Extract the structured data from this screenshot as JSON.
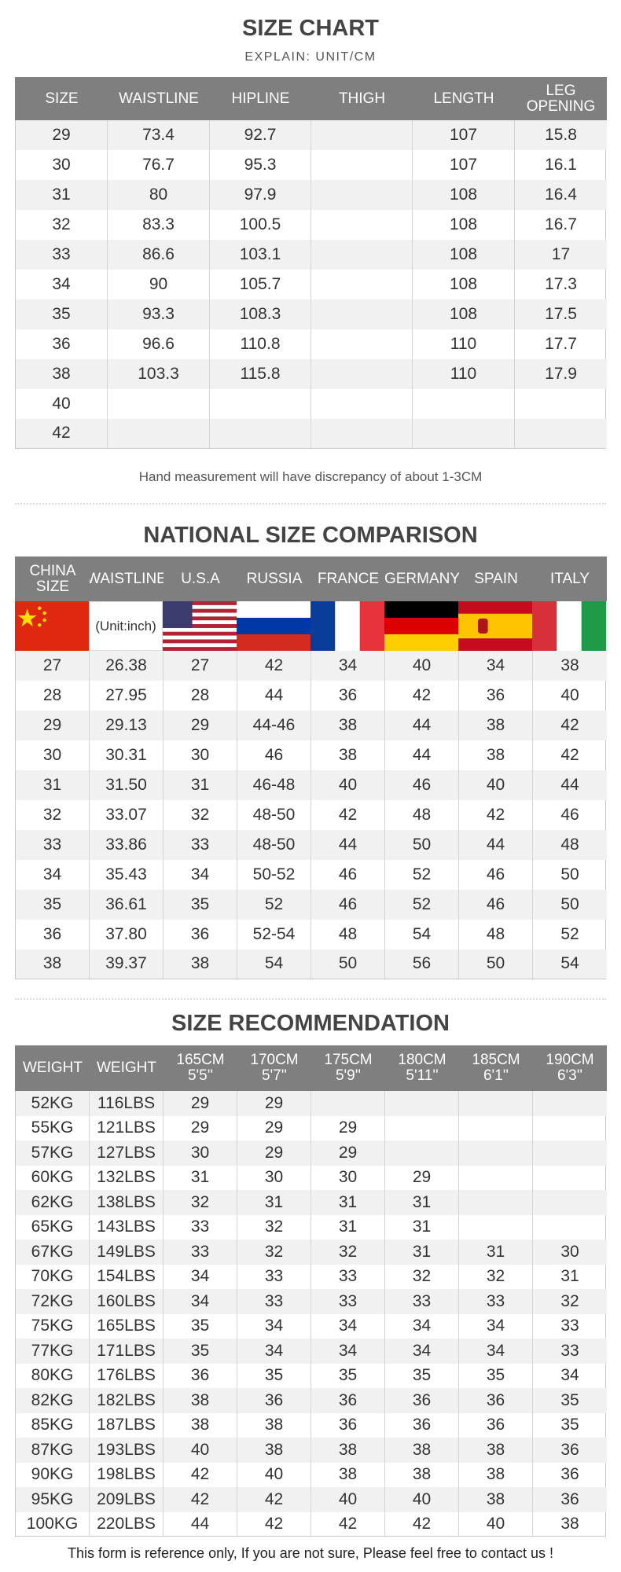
{
  "size_chart": {
    "title": "SIZE CHART",
    "subtitle": "EXPLAIN: UNIT/CM",
    "headers": [
      "SIZE",
      "WAISTLINE",
      "HIPLINE",
      "THIGH",
      "LENGTH",
      "LEG OPENING"
    ],
    "rows": [
      [
        "29",
        "73.4",
        "92.7",
        null,
        "107",
        "15.8"
      ],
      [
        "30",
        "76.7",
        "95.3",
        null,
        "107",
        "16.1"
      ],
      [
        "31",
        "80",
        "97.9",
        null,
        "108",
        "16.4"
      ],
      [
        "32",
        "83.3",
        "100.5",
        null,
        "108",
        "16.7"
      ],
      [
        "33",
        "86.6",
        "103.1",
        null,
        "108",
        "17"
      ],
      [
        "34",
        "90",
        "105.7",
        null,
        "108",
        "17.3"
      ],
      [
        "35",
        "93.3",
        "108.3",
        null,
        "108",
        "17.5"
      ],
      [
        "36",
        "96.6",
        "110.8",
        null,
        "110",
        "17.7"
      ],
      [
        "38",
        "103.3",
        "115.8",
        null,
        "110",
        "17.9"
      ],
      [
        "40",
        null,
        null,
        null,
        null,
        null
      ],
      [
        "42",
        null,
        null,
        null,
        null,
        null
      ]
    ],
    "note": "Hand measurement will have discrepancy of about 1-3CM"
  },
  "national": {
    "title": "NATIONAL SIZE COMPARISON",
    "headers": [
      "CHINA SIZE",
      "WAISTLINE",
      "U.S.A",
      "RUSSIA",
      "FRANCE",
      "GERMANY",
      "SPAIN",
      "ITALY"
    ],
    "unit_note": "(Unit:inch)",
    "rows": [
      [
        "27",
        "26.38",
        "27",
        "42",
        "34",
        "40",
        "34",
        "38"
      ],
      [
        "28",
        "27.95",
        "28",
        "44",
        "36",
        "42",
        "36",
        "40"
      ],
      [
        "29",
        "29.13",
        "29",
        "44-46",
        "38",
        "44",
        "38",
        "42"
      ],
      [
        "30",
        "30.31",
        "30",
        "46",
        "38",
        "44",
        "38",
        "42"
      ],
      [
        "31",
        "31.50",
        "31",
        "46-48",
        "40",
        "46",
        "40",
        "44"
      ],
      [
        "32",
        "33.07",
        "32",
        "48-50",
        "42",
        "48",
        "42",
        "46"
      ],
      [
        "33",
        "33.86",
        "33",
        "48-50",
        "44",
        "50",
        "44",
        "48"
      ],
      [
        "34",
        "35.43",
        "34",
        "50-52",
        "46",
        "52",
        "46",
        "50"
      ],
      [
        "35",
        "36.61",
        "35",
        "52",
        "46",
        "52",
        "46",
        "50"
      ],
      [
        "36",
        "37.80",
        "36",
        "52-54",
        "48",
        "54",
        "48",
        "52"
      ],
      [
        "38",
        "39.37",
        "38",
        "54",
        "50",
        "56",
        "50",
        "54"
      ]
    ]
  },
  "recommendation": {
    "title": "SIZE RECOMMENDATION",
    "headers": [
      "WEIGHT",
      "WEIGHT",
      {
        "metric": "165CM",
        "imperial": "5'5''"
      },
      {
        "metric": "170CM",
        "imperial": "5'7''"
      },
      {
        "metric": "175CM",
        "imperial": "5'9''"
      },
      {
        "metric": "180CM",
        "imperial": "5'11''"
      },
      {
        "metric": "185CM",
        "imperial": "6'1''"
      },
      {
        "metric": "190CM",
        "imperial": "6'3''"
      }
    ],
    "rows": [
      [
        "52KG",
        "116LBS",
        "29",
        "29",
        null,
        null,
        null,
        null
      ],
      [
        "55KG",
        "121LBS",
        "29",
        "29",
        "29",
        null,
        null,
        null
      ],
      [
        "57KG",
        "127LBS",
        "30",
        "29",
        "29",
        null,
        null,
        null
      ],
      [
        "60KG",
        "132LBS",
        "31",
        "30",
        "30",
        "29",
        null,
        null
      ],
      [
        "62KG",
        "138LBS",
        "32",
        "31",
        "31",
        "31",
        null,
        null
      ],
      [
        "65KG",
        "143LBS",
        "33",
        "32",
        "31",
        "31",
        null,
        null
      ],
      [
        "67KG",
        "149LBS",
        "33",
        "32",
        "32",
        "31",
        "31",
        "30"
      ],
      [
        "70KG",
        "154LBS",
        "34",
        "33",
        "33",
        "32",
        "32",
        "31"
      ],
      [
        "72KG",
        "160LBS",
        "34",
        "33",
        "33",
        "33",
        "33",
        "32"
      ],
      [
        "75KG",
        "165LBS",
        "35",
        "34",
        "34",
        "34",
        "34",
        "33"
      ],
      [
        "77KG",
        "171LBS",
        "35",
        "34",
        "34",
        "34",
        "34",
        "33"
      ],
      [
        "80KG",
        "176LBS",
        "36",
        "35",
        "35",
        "35",
        "35",
        "34"
      ],
      [
        "82KG",
        "182LBS",
        "38",
        "36",
        "36",
        "36",
        "36",
        "35"
      ],
      [
        "85KG",
        "187LBS",
        "38",
        "38",
        "36",
        "36",
        "36",
        "35"
      ],
      [
        "87KG",
        "193LBS",
        "40",
        "38",
        "38",
        "38",
        "38",
        "36"
      ],
      [
        "90KG",
        "198LBS",
        "42",
        "40",
        "38",
        "38",
        "38",
        "36"
      ],
      [
        "95KG",
        "209LBS",
        "42",
        "42",
        "40",
        "40",
        "38",
        "36"
      ],
      [
        "100KG",
        "220LBS",
        "44",
        "42",
        "42",
        "42",
        "40",
        "38"
      ]
    ]
  },
  "footer": "This form is reference only, If you are not sure, Please feel free to contact us !"
}
